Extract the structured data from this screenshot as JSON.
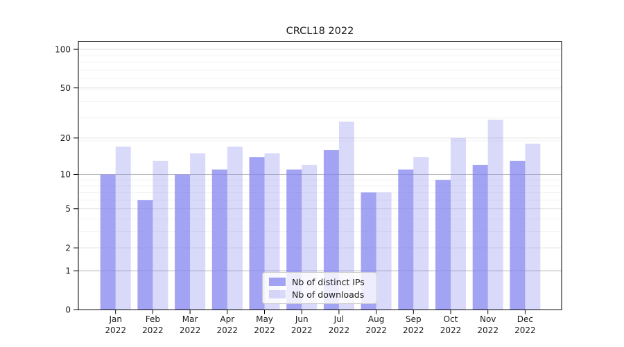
{
  "title": "CRCL18 2022",
  "chart_data": {
    "type": "bar",
    "categories": [
      "Jan",
      "Feb",
      "Mar",
      "Apr",
      "May",
      "Jun",
      "Jul",
      "Aug",
      "Sep",
      "Oct",
      "Nov",
      "Dec"
    ],
    "category_year_sublabel": "2022",
    "series": [
      {
        "name": "Nb of distinct IPs",
        "values": [
          10,
          6,
          10,
          11,
          14,
          11,
          16,
          7,
          11,
          9,
          12,
          13
        ]
      },
      {
        "name": "Nb of downloads",
        "values": [
          17,
          13,
          15,
          17,
          15,
          12,
          27,
          7,
          14,
          20,
          28,
          18
        ]
      }
    ],
    "yscale": "log1p",
    "yticks": [
      0,
      1,
      2,
      5,
      10,
      20,
      50,
      100
    ],
    "ylim": [
      0,
      116
    ],
    "xlabel": "",
    "ylabel": "",
    "grid": true,
    "legend_position": "lower center"
  },
  "colors": {
    "bar_base_rgb": "128,128,238",
    "ips_alpha": 0.72,
    "downloads_alpha": 0.3,
    "grid_strong": "#b9b9b9",
    "grid_mid": "#e3e3e3",
    "grid_minor": "#f3f3f3",
    "axis": "#000000",
    "text": "#1a1a1a",
    "legend_border": "#cccccc"
  }
}
